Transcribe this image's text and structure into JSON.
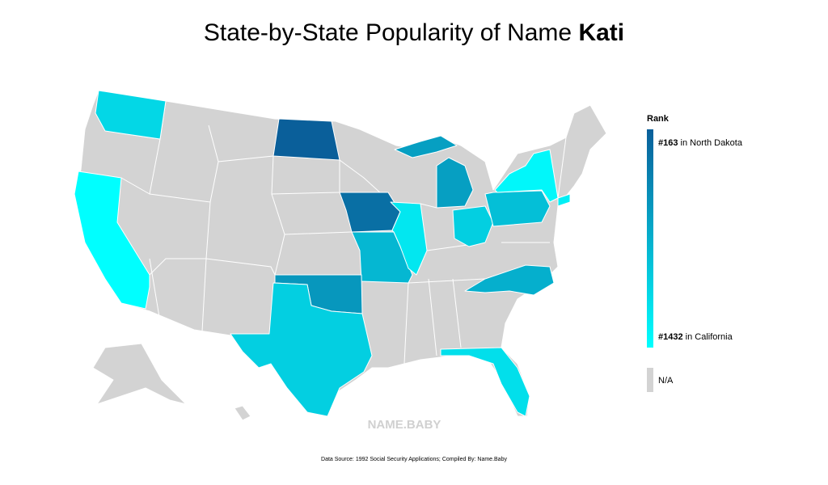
{
  "title": {
    "text": "State-by-State Popularity of Name",
    "name": "Kati"
  },
  "legend": {
    "title": "Rank",
    "high": {
      "rank": "#163",
      "place": "in North Dakota"
    },
    "low": {
      "rank": "#1432",
      "place": "in California"
    },
    "na": "N/A",
    "gradient": [
      "#0a5f9a",
      "#00ffff"
    ],
    "na_color": "#d3d3d3"
  },
  "watermark": "NAME.BABY",
  "footer": "Data Source: 1992 Social Security Applications; Compiled By: Name.Baby"
}
